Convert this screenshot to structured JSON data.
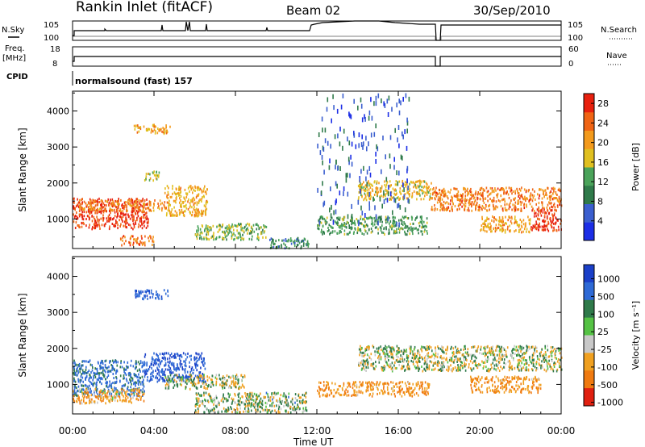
{
  "header": {
    "station": "Rankin Inlet (fitACF)",
    "beam": "Beam 02",
    "date": "30/Sep/2010"
  },
  "summary_panels": {
    "nsky": {
      "label": "N.Sky",
      "ticks": [
        "10^5",
        "10^0"
      ]
    },
    "nsearch": {
      "label": "N.Search",
      "ticks": [
        "10^5",
        "10^0"
      ]
    },
    "freq": {
      "label_line1": "Freq.",
      "label_line2": "[MHz]",
      "ticks": [
        "18",
        "8"
      ]
    },
    "nave": {
      "label": "Nave",
      "ticks": [
        "60",
        "0"
      ]
    },
    "cpid": {
      "label": "CPID",
      "value": "normalsound (fast) 157"
    }
  },
  "chart_data": [
    {
      "type": "heatmap",
      "title": "",
      "quantity": "Power",
      "xlabel": "",
      "ylabel": "Slant Range [km]",
      "x_ticks": [
        "00:00",
        "04:00",
        "08:00",
        "12:00",
        "16:00",
        "20:00",
        "00:00"
      ],
      "xlim_hours": [
        0,
        24
      ],
      "y_ticks": [
        1000,
        2000,
        3000,
        4000
      ],
      "ylim": [
        180,
        4550
      ],
      "colorbar": {
        "label": "Power [dB]",
        "ticks": [
          4,
          8,
          12,
          16,
          20,
          24,
          28
        ],
        "range": [
          0,
          30
        ],
        "colors": [
          "#1c2ee6",
          "#3b5fcf",
          "#2f7a4a",
          "#4aa35a",
          "#e0c020",
          "#f39a1c",
          "#f06414",
          "#e8200e"
        ]
      },
      "regions": [
        {
          "t0": 0.0,
          "t1": 3.7,
          "r0": 750,
          "r1": 1600,
          "value": 27
        },
        {
          "t0": 0.3,
          "t1": 4.5,
          "r0": 1250,
          "r1": 1550,
          "value": 22
        },
        {
          "t0": 2.3,
          "t1": 4.0,
          "r0": 300,
          "r1": 560,
          "value": 24
        },
        {
          "t0": 3.0,
          "t1": 4.8,
          "r0": 3400,
          "r1": 3650,
          "value": 20
        },
        {
          "t0": 3.5,
          "t1": 4.3,
          "r0": 2100,
          "r1": 2350,
          "value": 16
        },
        {
          "t0": 4.5,
          "t1": 6.6,
          "r0": 1100,
          "r1": 1950,
          "value": 19
        },
        {
          "t0": 6.0,
          "t1": 9.5,
          "r0": 450,
          "r1": 900,
          "value": 14
        },
        {
          "t0": 9.5,
          "t1": 11.6,
          "r0": 220,
          "r1": 500,
          "value": 10
        },
        {
          "t0": 12.0,
          "t1": 17.4,
          "r0": 600,
          "r1": 1100,
          "value": 12
        },
        {
          "t0": 14.0,
          "t1": 17.6,
          "r0": 1550,
          "r1": 2100,
          "value": 18
        },
        {
          "t0": 17.6,
          "t1": 24.0,
          "r0": 1250,
          "r1": 1900,
          "value": 23
        },
        {
          "t0": 20.0,
          "t1": 22.5,
          "r0": 650,
          "r1": 1100,
          "value": 20
        },
        {
          "t0": 22.5,
          "t1": 24.0,
          "r0": 700,
          "r1": 1300,
          "value": 27
        },
        {
          "t0": 12.0,
          "t1": 16.5,
          "r0": 900,
          "r1": 4500,
          "value": 6
        }
      ]
    },
    {
      "type": "heatmap",
      "title": "",
      "quantity": "Velocity",
      "xlabel": "Time UT",
      "ylabel": "Slant Range [km]",
      "x_ticks": [
        "00:00",
        "04:00",
        "08:00",
        "12:00",
        "16:00",
        "20:00",
        "00:00"
      ],
      "xlim_hours": [
        0,
        24
      ],
      "y_ticks": [
        1000,
        2000,
        3000,
        4000
      ],
      "ylim": [
        180,
        4550
      ],
      "colorbar": {
        "label": "Velocity [m s^-1]",
        "ticks": [
          1000,
          500,
          100,
          25,
          -25,
          -100,
          -500,
          -1000
        ],
        "colors": [
          "#1a3fc8",
          "#2e6ad6",
          "#2f7a4a",
          "#55c244",
          "#c8c8c8",
          "#f0a020",
          "#f07a10",
          "#e02010"
        ]
      },
      "regions": [
        {
          "t0": 0.0,
          "t1": 3.5,
          "r0": 700,
          "r1": 1700,
          "value": 400
        },
        {
          "t0": 0.0,
          "t1": 3.5,
          "r0": 500,
          "r1": 900,
          "value": -200
        },
        {
          "t0": 3.0,
          "t1": 4.8,
          "r0": 3400,
          "r1": 3650,
          "value": 600
        },
        {
          "t0": 3.5,
          "t1": 6.5,
          "r0": 1100,
          "r1": 1900,
          "value": 700
        },
        {
          "t0": 4.5,
          "t1": 8.5,
          "r0": 900,
          "r1": 1300,
          "value": 0
        },
        {
          "t0": 6.0,
          "t1": 11.5,
          "r0": 250,
          "r1": 800,
          "value": 60
        },
        {
          "t0": 12.0,
          "t1": 17.5,
          "r0": 700,
          "r1": 1100,
          "value": -300
        },
        {
          "t0": 14.0,
          "t1": 24.0,
          "r0": 1400,
          "r1": 2100,
          "value": 0
        },
        {
          "t0": 19.5,
          "t1": 23.0,
          "r0": 800,
          "r1": 1250,
          "value": -300
        }
      ]
    }
  ]
}
